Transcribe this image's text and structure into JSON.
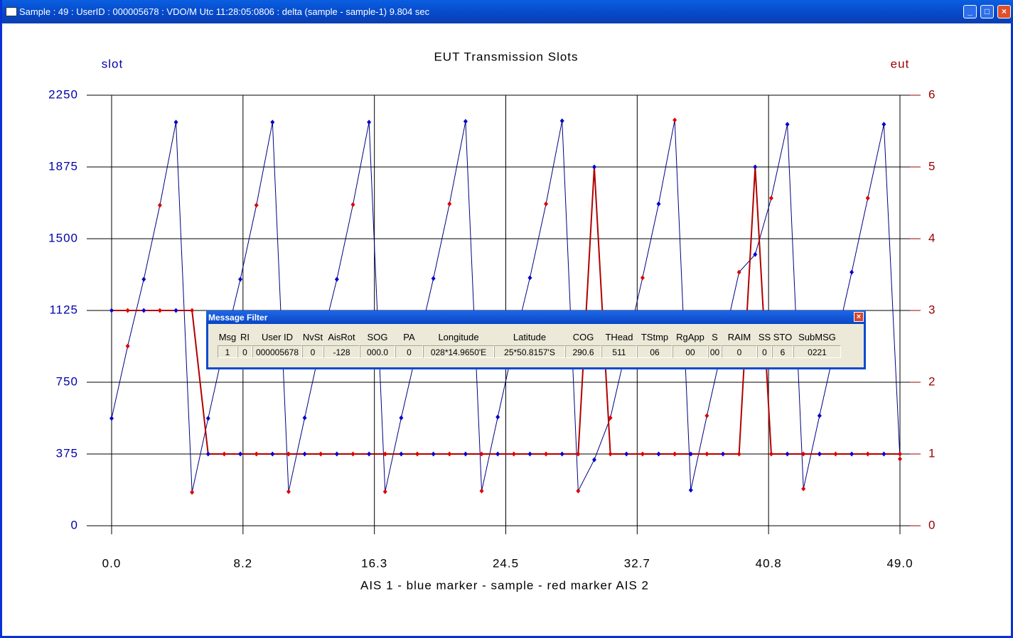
{
  "window": {
    "title": "Sample : 49 : UserID : 000005678 : VDO/M Utc 11:28:05:0806 : delta (sample - sample-1) 9.804 sec"
  },
  "chart_data": {
    "type": "line",
    "title": "EUT Transmission Slots",
    "ylabel": "slot",
    "y2label": "eut",
    "xlabel": "AIS 1 - blue marker - sample - red marker AIS 2",
    "x": [
      0,
      1,
      2,
      3,
      4,
      5,
      6,
      7,
      8,
      9,
      10,
      11,
      12,
      13,
      14,
      15,
      16,
      17,
      18,
      19,
      20,
      21,
      22,
      23,
      24,
      25,
      26,
      27,
      28,
      29,
      30,
      31,
      32,
      33,
      34,
      35,
      36,
      37,
      38,
      39,
      40,
      41,
      42,
      43,
      44,
      45,
      46,
      47,
      48,
      49
    ],
    "xlim": [
      0,
      49
    ],
    "xticks": [
      {
        "value": 0,
        "label": "0.0"
      },
      {
        "value": 8.1667,
        "label": "8.2"
      },
      {
        "value": 16.333,
        "label": "16.3"
      },
      {
        "value": 24.5,
        "label": "24.5"
      },
      {
        "value": 32.667,
        "label": "32.7"
      },
      {
        "value": 40.833,
        "label": "40.8"
      },
      {
        "value": 49,
        "label": "49.0"
      }
    ],
    "ylim": [
      0,
      2250
    ],
    "yticks": [
      0,
      375,
      750,
      1125,
      1500,
      1875,
      2250
    ],
    "y2lim": [
      0,
      6
    ],
    "y2ticks": [
      0,
      1,
      2,
      3,
      4,
      5,
      6
    ],
    "grid": true,
    "marker_colors": [
      "#0000cc",
      "#dd0000"
    ],
    "series": [
      {
        "name": "slot",
        "color": "#000080",
        "values": [
          561,
          939,
          1288,
          1675,
          2109,
          175,
          561,
          939,
          1288,
          1675,
          2109,
          178,
          564,
          947,
          1288,
          1678,
          2109,
          178,
          564,
          928,
          1292,
          1682,
          2113,
          182,
          568,
          947,
          1296,
          1682,
          2116,
          182,
          345,
          564,
          930,
          1296,
          1682,
          2120,
          186,
          575,
          950,
          1325,
          1418,
          1712,
          2098,
          193,
          575,
          950,
          1325,
          1712,
          2098,
          349
        ]
      },
      {
        "name": "eut",
        "color": "#b00000",
        "axis": "y2",
        "values": [
          3,
          3,
          3,
          3,
          3,
          3,
          1,
          1,
          1,
          1,
          1,
          1,
          1,
          1,
          1,
          1,
          1,
          1,
          1,
          1,
          1,
          1,
          1,
          1,
          1,
          1,
          1,
          1,
          1,
          1,
          5,
          1,
          1,
          1,
          1,
          1,
          1,
          1,
          1,
          1,
          5,
          1,
          1,
          1,
          1,
          1,
          1,
          1,
          1,
          1
        ]
      }
    ]
  },
  "dialog": {
    "title": "Message Filter",
    "headers": [
      "Msg",
      "RI",
      "User ID",
      "NvSt",
      "AisRot",
      "SOG",
      "PA",
      "Longitude",
      "Latitude",
      "COG",
      "THead",
      "TStmp",
      "RgApp",
      "S",
      "RAIM",
      "SS",
      "STO",
      "SubMSG"
    ],
    "row": [
      "1",
      "0",
      "000005678",
      "0",
      "-128",
      "000.0",
      "0",
      "028*14.9650'E",
      "25*50.8157'S",
      "290.6",
      "511",
      "06",
      "00",
      "00",
      "0",
      "0",
      "6",
      "0221"
    ]
  }
}
